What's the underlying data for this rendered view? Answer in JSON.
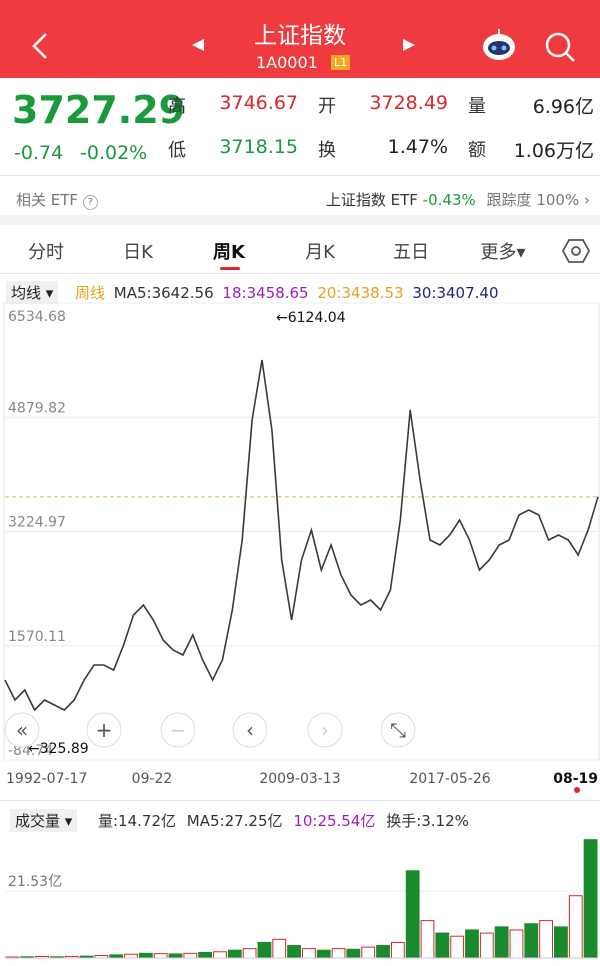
{
  "header": {
    "title": "上证指数",
    "code": "1A0001",
    "badge": "L1"
  },
  "quote": {
    "price": "3727.29",
    "change": "-0.74",
    "change_pct": "-0.02%",
    "fields": [
      [
        {
          "label": "高",
          "value": "3746.67",
          "tone": "red"
        },
        {
          "label": "开",
          "value": "3728.49",
          "tone": "red"
        },
        {
          "label": "量",
          "value": "6.96亿",
          "tone": "dark"
        }
      ],
      [
        {
          "label": "低",
          "value": "3718.15",
          "tone": "green"
        },
        {
          "label": "换",
          "value": "1.47%",
          "tone": "dark"
        },
        {
          "label": "额",
          "value": "1.06万亿",
          "tone": "dark"
        }
      ]
    ]
  },
  "etf": {
    "label": "相关 ETF",
    "name": "上证指数 ETF",
    "change": "-0.43%",
    "tracking_label": "跟踪度",
    "tracking": "100%"
  },
  "tabs": [
    "分时",
    "日K",
    "周K",
    "月K",
    "五日",
    "更多▾"
  ],
  "indicators": {
    "selector": "均线",
    "period": "周线",
    "ma5": "MA5:3642.56",
    "ma18": "18:3458.65",
    "ma20": "20:3438.53",
    "ma30": "30:3407.40"
  },
  "volume_info": {
    "selector": "成交量",
    "volume": "量:14.72亿",
    "ma5": "MA5:27.25亿",
    "ma10": "10:25.54亿",
    "turnover": "换手:3.12%"
  },
  "chart_data": [
    {
      "type": "line",
      "color": "#3a3a3a",
      "values": [
        1074,
        784,
        929,
        640,
        784,
        712,
        640,
        784,
        1074,
        1291,
        1291,
        1219,
        1581,
        2016,
        2160,
        1943,
        1654,
        1509,
        1436,
        1726,
        1364,
        1074,
        1364,
        2088,
        3102,
        4840,
        5709,
        4695,
        2812,
        1943,
        2812,
        3247,
        2667,
        3030,
        2595,
        2305,
        2160,
        2233,
        2088,
        2378,
        3392,
        4985,
        3971,
        3102,
        3030,
        3174,
        3392,
        3102,
        2667,
        2812,
        3030,
        3102,
        3464,
        3537,
        3464,
        3102,
        3174,
        3102,
        2885,
        3247,
        3727
      ],
      "ylim": [
        -84.74,
        6534.68
      ],
      "yticks": [
        6534.68,
        4879.82,
        3224.97,
        1570.11,
        -84.74
      ],
      "reference_line": 3727.29,
      "xtick_labels": [
        "1992-07-17",
        "09-22",
        "2009-03-13",
        "2017-05-26",
        "08-19"
      ],
      "annotations": [
        "←6124.04",
        "←325.89"
      ]
    },
    {
      "type": "bar",
      "colors": [
        "#d8262c",
        "#1a8a2e"
      ],
      "values": [
        0.3,
        0.4,
        0.5,
        0.4,
        0.5,
        0.6,
        0.8,
        1,
        1.2,
        1.5,
        1.4,
        1.3,
        1.5,
        1.8,
        2,
        2.5,
        3,
        5,
        6,
        4,
        3,
        2.5,
        3,
        2.8,
        3.5,
        4,
        5,
        28,
        12,
        8,
        7,
        9,
        8,
        10,
        9,
        11,
        12,
        10,
        20,
        38
      ],
      "ylim": [
        0,
        39.5
      ],
      "yticks": [
        {
          "value": 21.53,
          "label": "21.53亿"
        }
      ]
    }
  ]
}
